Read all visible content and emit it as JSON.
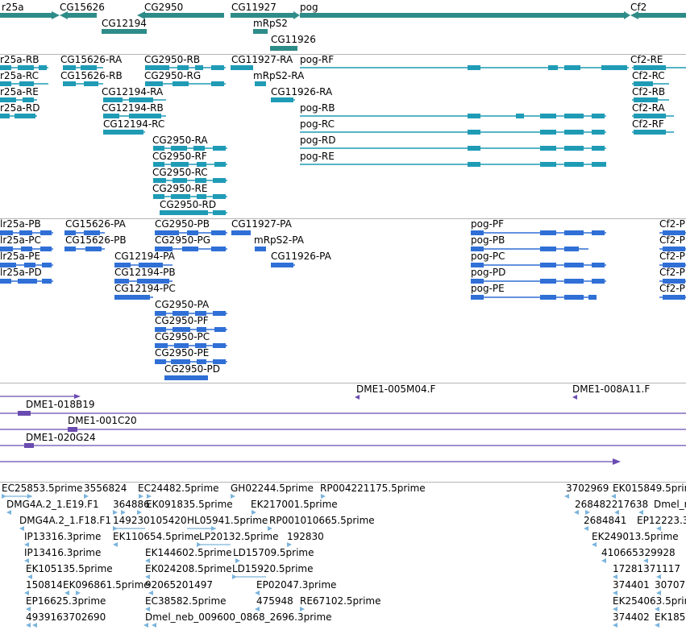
{
  "colors": {
    "gene": "#2e8c88",
    "transcript_flybase": "#1f9bb5",
    "transcript_refseq": "#2f6fd6",
    "clone": "#6a4bb0",
    "est": "#7ab4dc",
    "separator": "#b5b5b5"
  },
  "tracks": {
    "genes": {
      "labels": [
        "r25a",
        "CG15626",
        "CG2950",
        "CG11927",
        "pog",
        "Cf2",
        "CG12194",
        "mRpS2",
        "CG11926"
      ]
    },
    "flybase_transcripts": {
      "labels": [
        "r25a-RB",
        "CG15626-RA",
        "CG2950-RB",
        "CG11927-RA",
        "pog-RF",
        "Cf2-RE",
        "r25a-RC",
        "CG15626-RB",
        "CG2950-RG",
        "mRpS2-RA",
        "Cf2-RC",
        "r25a-RE",
        "CG12194-RA",
        "CG11926-RA",
        "Cf2-RB",
        "r25a-RD",
        "CG12194-RB",
        "pog-RB",
        "Cf2-RA",
        "CG12194-RC",
        "pog-RC",
        "Cf2-RF",
        "CG2950-RA",
        "pog-RD",
        "CG2950-RF",
        "pog-RE",
        "CG2950-RC",
        "CG2950-RE",
        "CG2950-RD"
      ]
    },
    "refseq_transcripts": {
      "labels": [
        "lr25a-PB",
        "CG15626-PA",
        "CG2950-PB",
        "CG11927-PA",
        "pog-PF",
        "Cf2-P",
        "lr25a-PC",
        "CG15626-PB",
        "CG2950-PG",
        "mRpS2-PA",
        "pog-PB",
        "Cf2-P",
        "lr25a-PE",
        "CG12194-PA",
        "CG11926-PA",
        "pog-PC",
        "Cf2-P",
        "lr25a-PD",
        "CG12194-PB",
        "pog-PD",
        "Cf2-P",
        "CG12194-PC",
        "pog-PE",
        "Cf2-P",
        "CG2950-PA",
        "CG2950-PF",
        "CG2950-PC",
        "CG2950-PE",
        "CG2950-PD"
      ]
    },
    "clones": {
      "labels": [
        "DME1-005M04.F",
        "DME1-008A11.F",
        "DME1-018B19",
        "DME1-001C20",
        "DME1-020G24"
      ]
    },
    "ests": {
      "labels": [
        "EC25853.5prime",
        "3556824",
        "EC24482.5prime",
        "GH02244.5prime",
        "RP004221175.5prime",
        "3702969",
        "EK015849.5prime",
        "DMG4A.2_1.E19.F1",
        "364886",
        "EK091835.5prime",
        "EK217001.5prime",
        "2684822",
        "17638",
        "Dmel_r",
        "DMG4A.2_1.F18.F1",
        "149230105420",
        "HL05941.5prime",
        "RP001010665.5prime",
        "2684841",
        "EP12223.3",
        "IP13316.3prime",
        "EK110654.5prime",
        "LP20132.5prime",
        "192830",
        "EK249013.5prime",
        "IP13416.3prime",
        "EK144602.5prime",
        "LD15709.5prime",
        "410665329928",
        "EK105135.5prime",
        "EK024208.5prime",
        "LD15920.5prime",
        "17281371117",
        "150814",
        "EK096861.5prime",
        "92065201497",
        "EP02047.3prime",
        "374401",
        "30707",
        "EP16625.3prime",
        "EC38582.5prime",
        "475948",
        "RE67102.5prime",
        "EK254063.5prime",
        "4939163702690",
        "Dmel_neb_009600_0868_2696.3prime",
        "374402",
        "EK185"
      ]
    }
  }
}
